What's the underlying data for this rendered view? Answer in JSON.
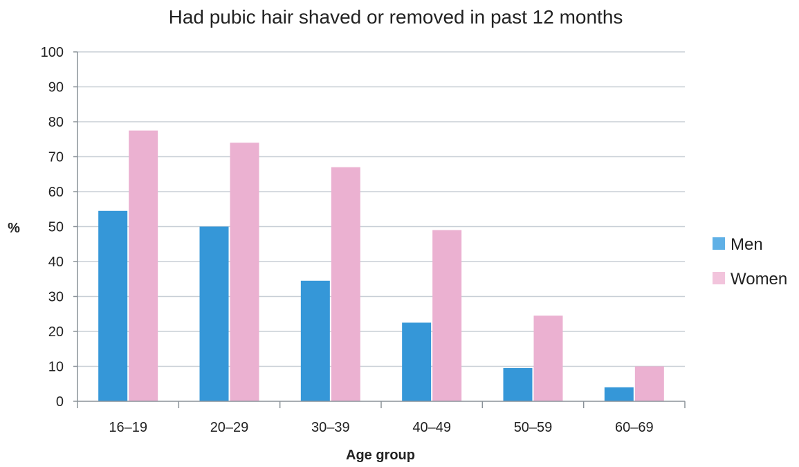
{
  "chart_data": {
    "type": "bar",
    "title": "Had pubic hair shaved or removed in past 12 months",
    "xlabel": "Age group",
    "ylabel": "%",
    "categories": [
      "16–19",
      "20–29",
      "30–39",
      "40–49",
      "50–59",
      "60–69"
    ],
    "series": [
      {
        "name": "Men",
        "values": [
          54.5,
          50,
          34.5,
          22.5,
          9.5,
          4
        ]
      },
      {
        "name": "Women",
        "values": [
          77.5,
          74,
          67,
          49,
          24.5,
          10
        ]
      }
    ],
    "ylim": [
      0,
      100
    ],
    "yticks": [
      "0",
      "10",
      "20",
      "30",
      "40",
      "50",
      "60",
      "70",
      "80",
      "90",
      "100"
    ],
    "grid": true,
    "legend_position": "right",
    "colors": {
      "Men": "#3597d8",
      "Women": "#ebb1d1",
      "legend_Men": "#5fb0e6",
      "legend_Women": "#f2c4dc",
      "grid": "#c8cfd6",
      "axis": "#8a9299",
      "text": "#222222"
    }
  }
}
